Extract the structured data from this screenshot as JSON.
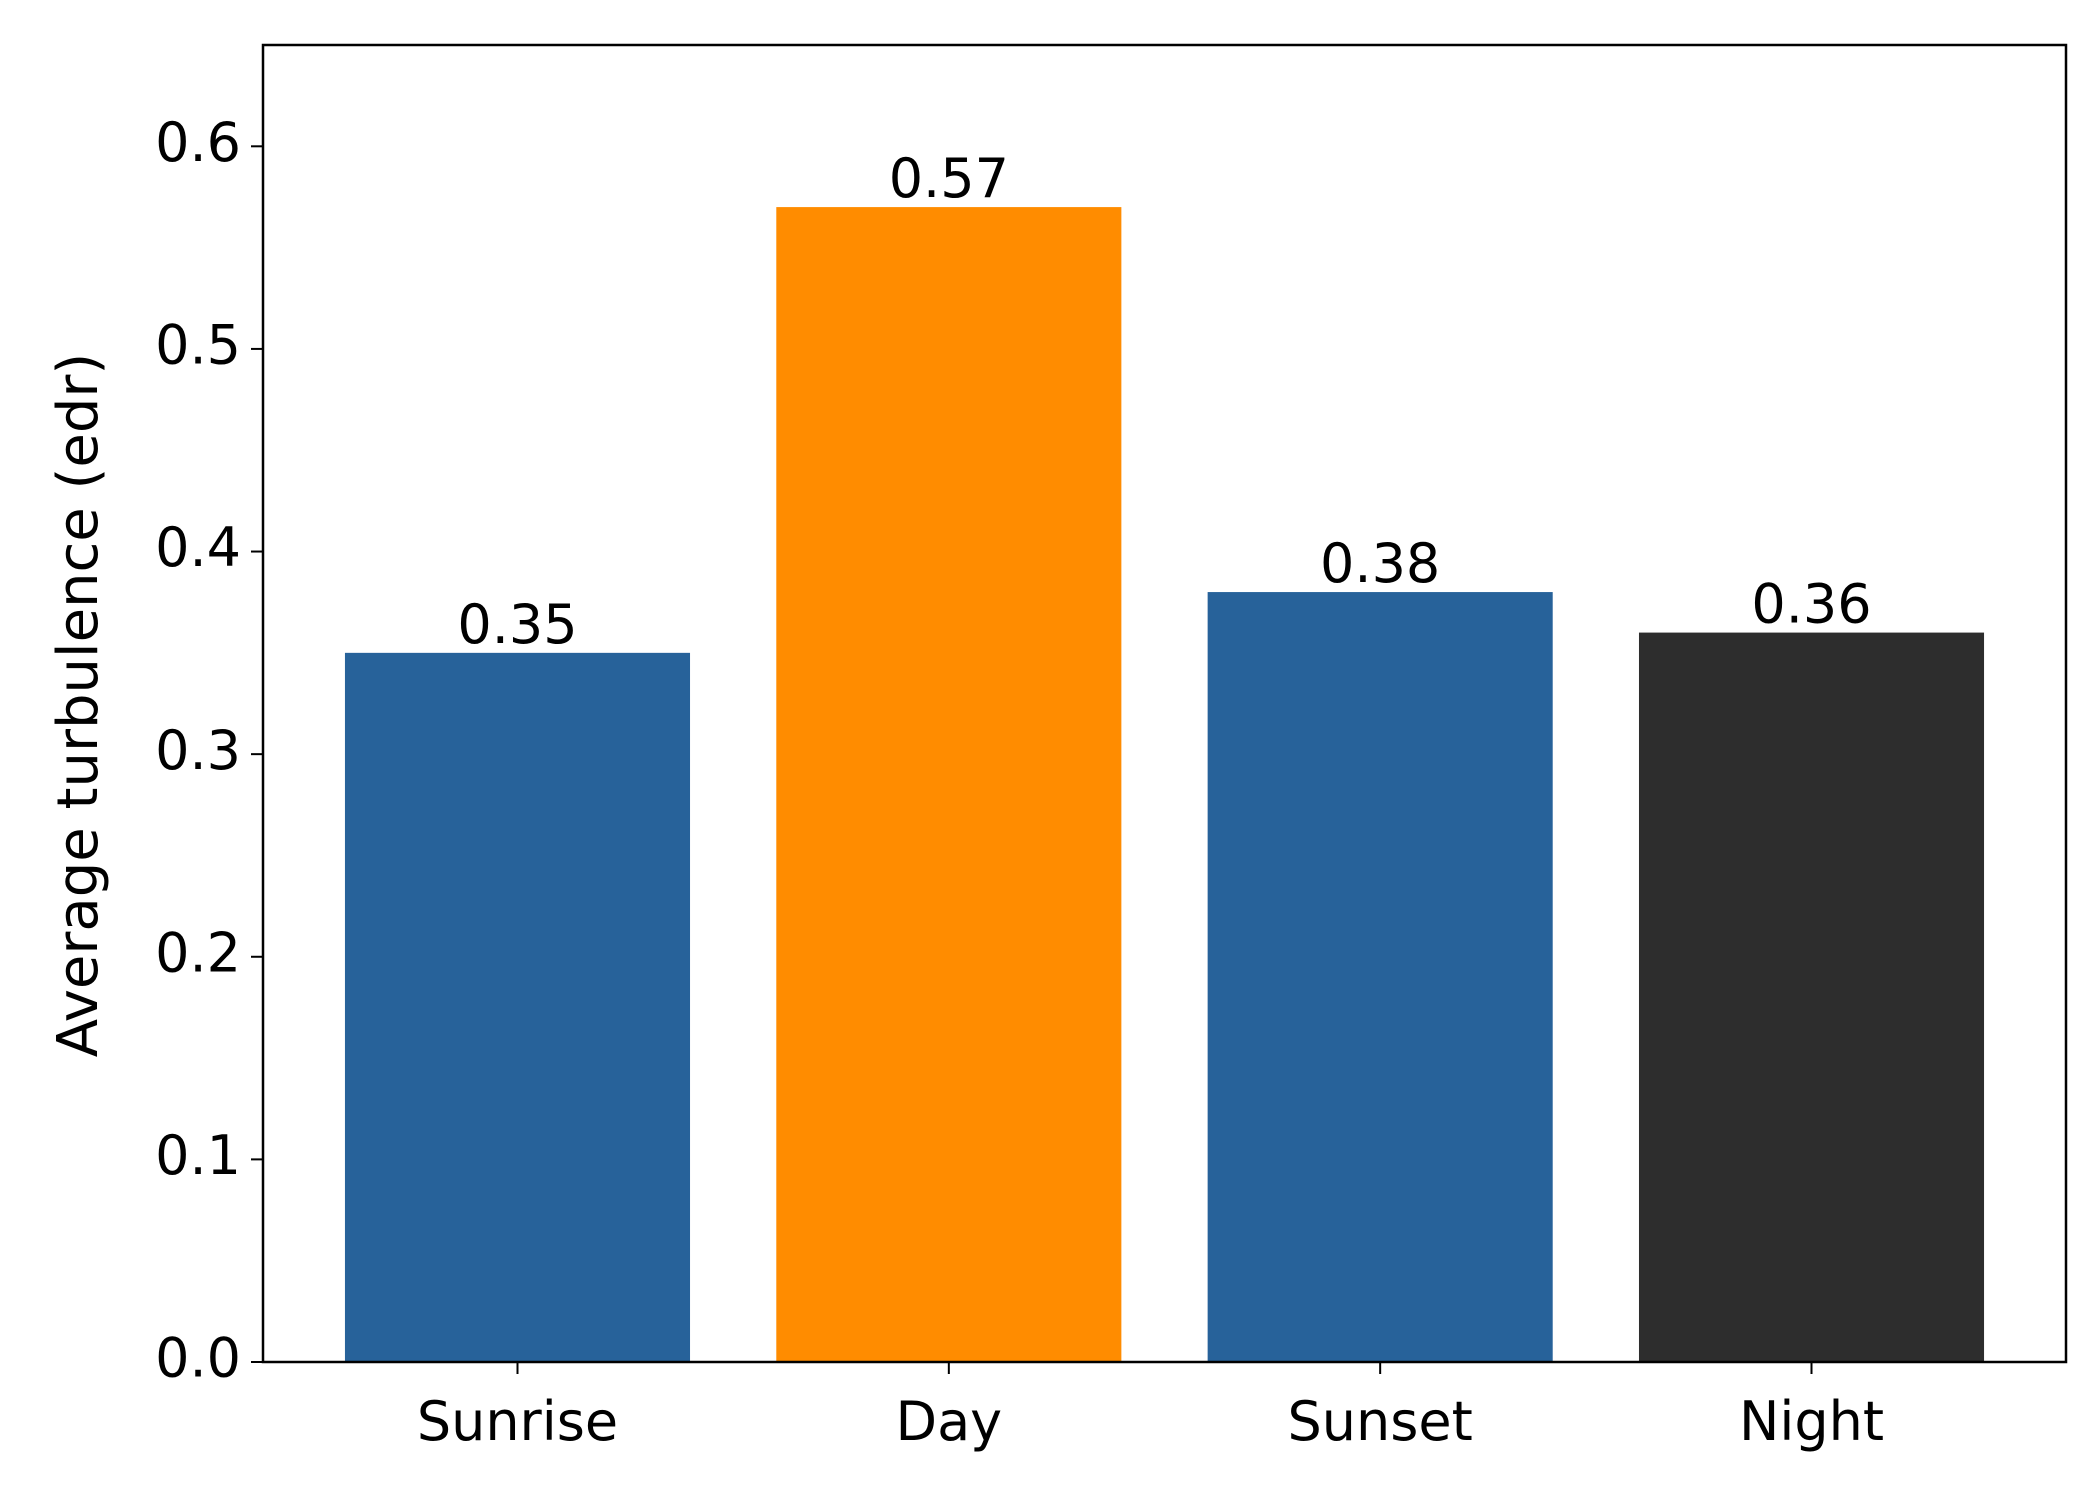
{
  "chart_data": {
    "type": "bar",
    "ylabel": "Average turbulence (edr)",
    "categories": [
      "Sunrise",
      "Day",
      "Sunset",
      "Night"
    ],
    "values": [
      0.35,
      0.57,
      0.38,
      0.36
    ],
    "colors": [
      "#27629a",
      "#ff8c00",
      "#27629a",
      "#2d2d2d"
    ],
    "ylim": [
      0,
      0.65
    ],
    "yticks": [
      {
        "value": 0,
        "label": "0.0"
      },
      0.1,
      0.2,
      0.3,
      0.4,
      0.5,
      0.6
    ],
    "grid": false
  }
}
